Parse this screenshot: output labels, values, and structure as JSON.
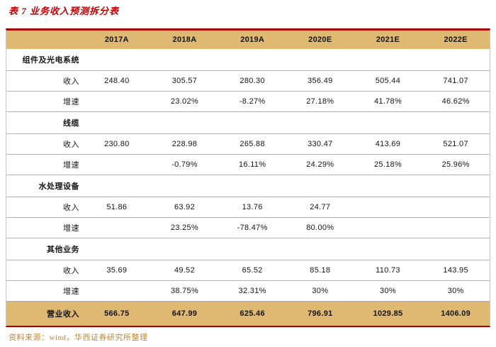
{
  "title": "表 7 业务收入预测拆分表",
  "source_note": "资料来源：wind，华西证券研究所整理",
  "colors": {
    "title_red": "#c00000",
    "accent_line_red": "#a40000",
    "header_band_tan": "#dfb871",
    "row_divider_gray": "#b3b3b3",
    "source_gold": "#b8863b"
  },
  "table": {
    "columns": [
      "2017A",
      "2018A",
      "2019A",
      "2020E",
      "2021E",
      "2022E"
    ],
    "sections": [
      {
        "name": "组件及光电系统",
        "rows": [
          {
            "label": "收入",
            "values": [
              "248.40",
              "305.57",
              "280.30",
              "356.49",
              "505.44",
              "741.07"
            ]
          },
          {
            "label": "增速",
            "values": [
              "",
              "23.02%",
              "-8.27%",
              "27.18%",
              "41.78%",
              "46.62%"
            ]
          }
        ]
      },
      {
        "name": "线缆",
        "rows": [
          {
            "label": "收入",
            "values": [
              "230.80",
              "228.98",
              "265.88",
              "330.47",
              "413.69",
              "521.07"
            ]
          },
          {
            "label": "增速",
            "values": [
              "",
              "-0.79%",
              "16.11%",
              "24.29%",
              "25.18%",
              "25.96%"
            ]
          }
        ]
      },
      {
        "name": "水处理设备",
        "rows": [
          {
            "label": "收入",
            "values": [
              "51.86",
              "63.92",
              "13.76",
              "24.77",
              "",
              ""
            ]
          },
          {
            "label": "增速",
            "values": [
              "",
              "23.25%",
              "-78.47%",
              "80.00%",
              "",
              ""
            ]
          }
        ]
      },
      {
        "name": "其他业务",
        "rows": [
          {
            "label": "收入",
            "values": [
              "35.69",
              "49.52",
              "65.52",
              "85.18",
              "110.73",
              "143.95"
            ]
          },
          {
            "label": "增速",
            "values": [
              "",
              "38.75%",
              "32.31%",
              "30%",
              "30%",
              "30%"
            ]
          }
        ]
      }
    ],
    "total": {
      "label": "营业收入",
      "values": [
        "566.75",
        "647.99",
        "625.46",
        "796.91",
        "1029.85",
        "1406.09"
      ]
    }
  }
}
